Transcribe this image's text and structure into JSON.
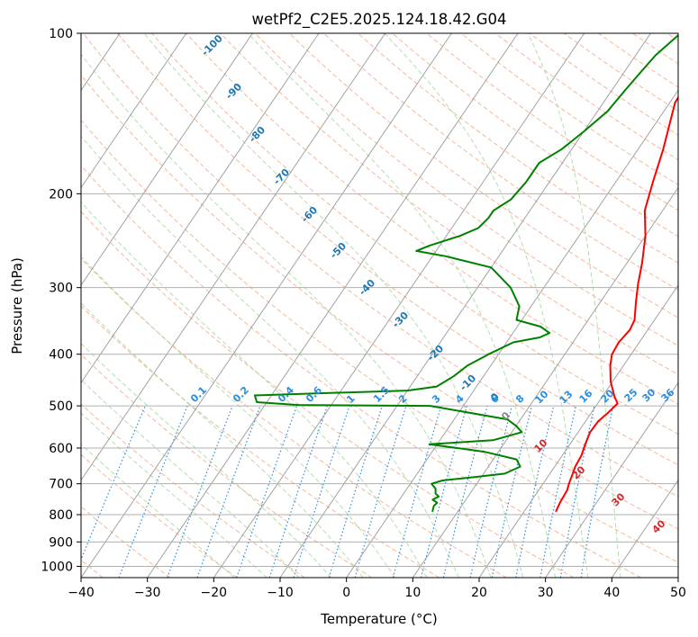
{
  "chart_data": {
    "type": "line",
    "title": "wetPf2_C2E5.2025.124.18.42.G04",
    "xlabel": "Temperature (°C)",
    "ylabel": "Pressure (hPa)",
    "xlim": [
      -40,
      50
    ],
    "ylim": [
      1050,
      100
    ],
    "y_scale": "log",
    "grid": true,
    "x_ticks": [
      "−40",
      "−30",
      "−20",
      "−10",
      "0",
      "10",
      "20",
      "30",
      "40",
      "50"
    ],
    "x_tick_values": [
      -40,
      -30,
      -20,
      -10,
      0,
      10,
      20,
      30,
      40,
      50
    ],
    "y_ticks": [
      "100",
      "200",
      "300",
      "400",
      "500",
      "600",
      "700",
      "800",
      "900",
      "1000"
    ],
    "y_tick_values": [
      100,
      200,
      300,
      400,
      500,
      600,
      700,
      800,
      900,
      1000
    ],
    "colors": {
      "temperature": "#ff0000",
      "dewpoint": "#008000",
      "dry_adiabat": "#f4a582",
      "moist_adiabat": "#a6d9a0",
      "mixing_ratio": "#2a8ee0",
      "isotherm": "#999999",
      "label_dry": "#d62728",
      "label_moist": "#1f77b4"
    },
    "series": [
      {
        "key": "temperature",
        "points": [
          [
            24.8,
            790
          ],
          [
            24.5,
            760
          ],
          [
            24.3,
            720
          ],
          [
            23.9,
            700
          ],
          [
            23.6,
            680
          ],
          [
            23.1,
            650
          ],
          [
            22.9,
            620
          ],
          [
            22.3,
            590
          ],
          [
            21.8,
            560
          ],
          [
            21.9,
            535
          ],
          [
            22.5,
            515
          ],
          [
            23.0,
            495
          ],
          [
            21.8,
            480
          ],
          [
            19.7,
            450
          ],
          [
            18.0,
            420
          ],
          [
            17.1,
            400
          ],
          [
            16.9,
            380
          ],
          [
            17.3,
            360
          ],
          [
            17.0,
            345
          ],
          [
            15.4,
            320
          ],
          [
            13.8,
            295
          ],
          [
            12.3,
            270
          ],
          [
            10.0,
            240
          ],
          [
            7.3,
            215
          ],
          [
            5.6,
            190
          ],
          [
            3.8,
            165
          ],
          [
            0.8,
            135
          ],
          [
            0.6,
            125
          ],
          [
            1.3,
            110
          ],
          [
            1.4,
            100
          ]
        ]
      },
      {
        "key": "dewpoint",
        "points": [
          [
            6.2,
            790
          ],
          [
            5.8,
            770
          ],
          [
            6.0,
            760
          ],
          [
            5.0,
            750
          ],
          [
            5.6,
            740
          ],
          [
            4.8,
            730
          ],
          [
            4.3,
            715
          ],
          [
            3.2,
            700
          ],
          [
            4.5,
            690
          ],
          [
            9.0,
            680
          ],
          [
            13.2,
            670
          ],
          [
            14.8,
            650
          ],
          [
            13.5,
            630
          ],
          [
            8.0,
            610
          ],
          [
            -1.2,
            590
          ],
          [
            8.0,
            580
          ],
          [
            11.5,
            560
          ],
          [
            10.0,
            545
          ],
          [
            8.0,
            530
          ],
          [
            -5.0,
            500
          ],
          [
            -25.0,
            498
          ],
          [
            -31.5,
            492
          ],
          [
            -32.5,
            478
          ],
          [
            -24.0,
            474
          ],
          [
            -10.0,
            468
          ],
          [
            -6.0,
            460
          ],
          [
            -4.5,
            440
          ],
          [
            -3.5,
            420
          ],
          [
            -1.5,
            400
          ],
          [
            1.0,
            380
          ],
          [
            4.5,
            372
          ],
          [
            5.5,
            365
          ],
          [
            3.5,
            355
          ],
          [
            -0.8,
            345
          ],
          [
            -1.8,
            325
          ],
          [
            -5.0,
            300
          ],
          [
            -10.0,
            275
          ],
          [
            -18.0,
            262
          ],
          [
            -23.0,
            256
          ],
          [
            -21.5,
            250
          ],
          [
            -18.0,
            240
          ],
          [
            -16.0,
            232
          ],
          [
            -15.5,
            222
          ],
          [
            -15.5,
            215
          ],
          [
            -14.0,
            205
          ],
          [
            -13.5,
            190
          ],
          [
            -13.5,
            175
          ],
          [
            -11.5,
            165
          ],
          [
            -10.0,
            153
          ],
          [
            -8.5,
            140
          ],
          [
            -8.0,
            128
          ],
          [
            -7.5,
            118
          ],
          [
            -7.0,
            110
          ],
          [
            -5.5,
            100
          ]
        ]
      }
    ],
    "dry_adiabat_labels": [
      "10",
      "20",
      "30",
      "40"
    ],
    "moist_adiabat_labels": [
      "-100",
      "-90",
      "-80",
      "-70",
      "-60",
      "-50",
      "-40",
      "-30",
      "-20",
      "-10",
      "0"
    ],
    "mixing_ratio_labels": [
      "0.1",
      "0.2",
      "0.4",
      "0.6",
      "1",
      "1.5",
      "2",
      "3",
      "4",
      "6",
      "8",
      "10",
      "13",
      "16",
      "20",
      "25",
      "30",
      "36"
    ]
  }
}
